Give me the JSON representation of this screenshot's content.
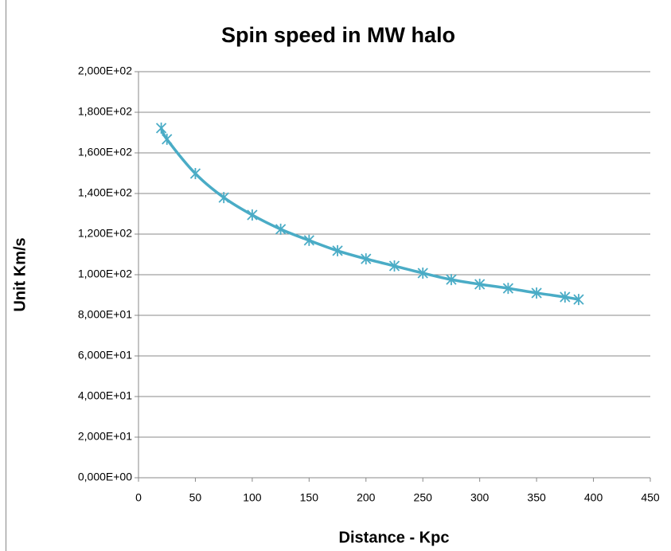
{
  "chart_data": {
    "type": "scatter",
    "title": "Spin speed in MW   halo",
    "x_label": "Distance - Kpc",
    "y_label": "Unit   Km/s",
    "series": [
      {
        "name": "Spin speed",
        "color": "#4aacc6",
        "x": [
          20,
          25,
          50,
          75,
          100,
          125,
          150,
          175,
          200,
          225,
          250,
          275,
          300,
          325,
          350,
          375,
          387
        ],
        "values": [
          172.2,
          166.7,
          149.8,
          138,
          129.4,
          122.4,
          116.9,
          111.8,
          107.8,
          104.3,
          100.8,
          97.6,
          95.3,
          93.3,
          91,
          89,
          87.8
        ]
      }
    ],
    "xlim": [
      0,
      450
    ],
    "xticks": [
      0,
      50,
      100,
      150,
      200,
      250,
      300,
      350,
      400,
      450
    ],
    "ylim": [
      0,
      200
    ],
    "yticks": [
      {
        "value": 0,
        "label": "0,000E+00"
      },
      {
        "value": 20,
        "label": "2,000E+01"
      },
      {
        "value": 40,
        "label": "4,000E+01"
      },
      {
        "value": 60,
        "label": "6,000E+01"
      },
      {
        "value": 80,
        "label": "8,000E+01"
      },
      {
        "value": 100,
        "label": "1,000E+02"
      },
      {
        "value": 120,
        "label": "1,200E+02"
      },
      {
        "value": 140,
        "label": "1,400E+02"
      },
      {
        "value": 160,
        "label": "1,600E+02"
      },
      {
        "value": 180,
        "label": "1,800E+02"
      },
      {
        "value": 200,
        "label": "2,000E+02"
      }
    ],
    "grid": true
  }
}
